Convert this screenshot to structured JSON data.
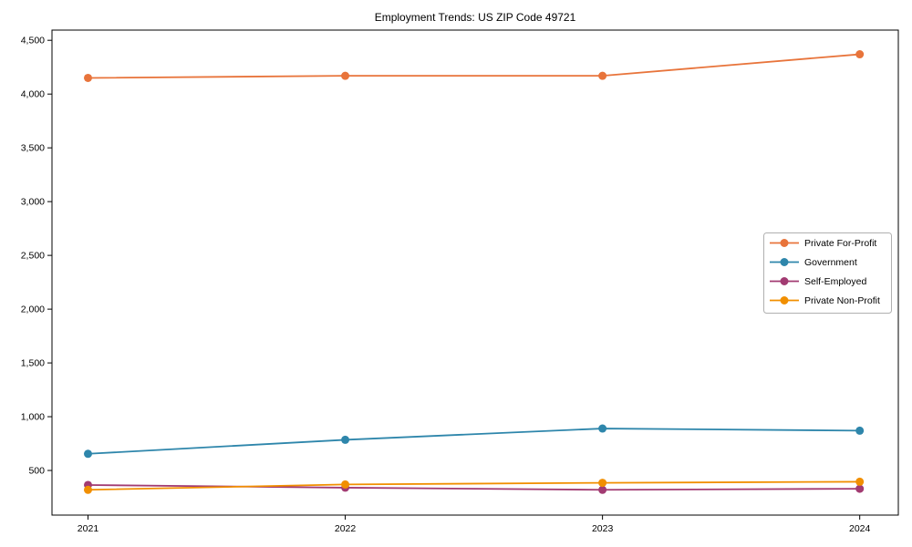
{
  "figure": {
    "background": "#ffffff",
    "axis_color": "#000000",
    "legend_border_color": "#b0b0b0"
  },
  "chart_data": {
    "type": "line",
    "title": "Employment Trends: US ZIP Code 49721",
    "xlabel": "",
    "ylabel": "",
    "x": [
      2021,
      2022,
      2023,
      2024
    ],
    "x_tick_labels": [
      "2021",
      "2022",
      "2023",
      "2024"
    ],
    "series": [
      {
        "name": "Private For-Profit",
        "color": "#E8743B",
        "marker": "circle",
        "values": [
          4150,
          4170,
          4170,
          4370
        ]
      },
      {
        "name": "Government",
        "color": "#2E86AB",
        "marker": "circle",
        "values": [
          655,
          785,
          890,
          870
        ]
      },
      {
        "name": "Self-Employed",
        "color": "#A23B72",
        "marker": "circle",
        "values": [
          365,
          340,
          320,
          330
        ]
      },
      {
        "name": "Private Non-Profit",
        "color": "#F18F01",
        "marker": "circle",
        "values": [
          320,
          370,
          385,
          395
        ]
      }
    ],
    "xlim": [
      2020.86,
      2024.15
    ],
    "ylim": [
      85,
      4595
    ],
    "yticks": [
      500,
      1000,
      1500,
      2000,
      2500,
      3000,
      3500,
      4000,
      4500
    ],
    "ytick_labels": [
      "500",
      "1,000",
      "1,500",
      "2,000",
      "2,500",
      "3,000",
      "3,500",
      "4,000",
      "4,500"
    ],
    "grid": false,
    "legend": {
      "position": "center-right",
      "frame": true
    }
  }
}
